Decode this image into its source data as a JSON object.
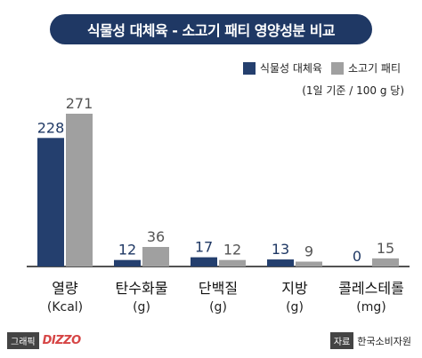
{
  "title": "식물성 대체육 - 소고기 패티 영양성분 비교",
  "legend": {
    "items": [
      {
        "label": "식물성 대체육",
        "color": "#243f6e"
      },
      {
        "label": "소고기 패티",
        "color": "#a0a0a0"
      }
    ]
  },
  "note": "(1일 기준 / 100 g 당)",
  "footer": {
    "graphic_tag": "그래픽",
    "logo": "DIZZO",
    "source_tag": "자료",
    "source": "한국소비자원"
  },
  "chart_data": {
    "type": "bar",
    "categories": [
      {
        "name": "열량",
        "unit": "(Kcal)"
      },
      {
        "name": "탄수화물",
        "unit": "(g)"
      },
      {
        "name": "단백질",
        "unit": "(g)"
      },
      {
        "name": "지방",
        "unit": "(g)"
      },
      {
        "name": "콜레스테롤",
        "unit": "(mg)"
      }
    ],
    "series": [
      {
        "name": "식물성 대체육",
        "color": "#243f6e",
        "values": [
          228,
          12,
          17,
          13,
          0
        ]
      },
      {
        "name": "소고기 패티",
        "color": "#a0a0a0",
        "values": [
          271,
          36,
          12,
          9,
          15
        ]
      }
    ],
    "axis_break": true
  }
}
